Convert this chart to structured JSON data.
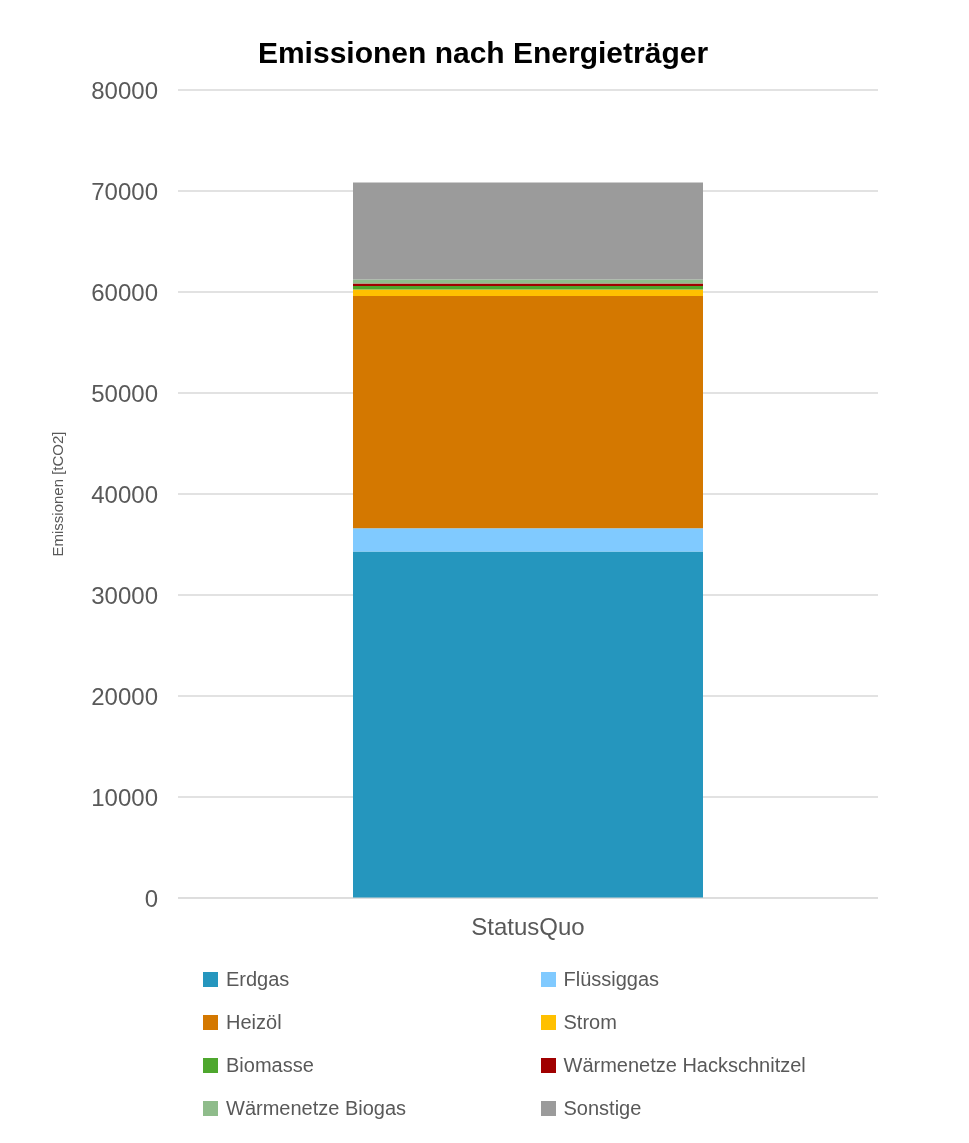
{
  "chart_data": {
    "type": "bar",
    "title": "Emissionen nach Energieträger",
    "ylabel": "Emissionen [tCO2]",
    "categories": [
      "StatusQuo"
    ],
    "stacked": true,
    "ylim": [
      0,
      80000
    ],
    "yticks": [
      0,
      10000,
      20000,
      30000,
      40000,
      50000,
      60000,
      70000,
      80000
    ],
    "grid": "y",
    "legend": "bottom",
    "series": [
      {
        "name": "Erdgas",
        "color": "#2596be",
        "values": [
          34300
        ]
      },
      {
        "name": "Flüssiggas",
        "color": "#80caff",
        "values": [
          2300
        ]
      },
      {
        "name": "Heizöl",
        "color": "#d47800",
        "values": [
          23000
        ]
      },
      {
        "name": "Strom",
        "color": "#ffc000",
        "values": [
          650
        ]
      },
      {
        "name": "Biomasse",
        "color": "#4ea72e",
        "values": [
          350
        ]
      },
      {
        "name": "Wärmenetze Hackschnitzel",
        "color": "#a00000",
        "values": [
          250
        ]
      },
      {
        "name": "Wärmenetze Biogas",
        "color": "#8fbc8b",
        "values": [
          400
        ]
      },
      {
        "name": "Sonstige",
        "color": "#9b9b9b",
        "values": [
          9600
        ]
      }
    ]
  }
}
